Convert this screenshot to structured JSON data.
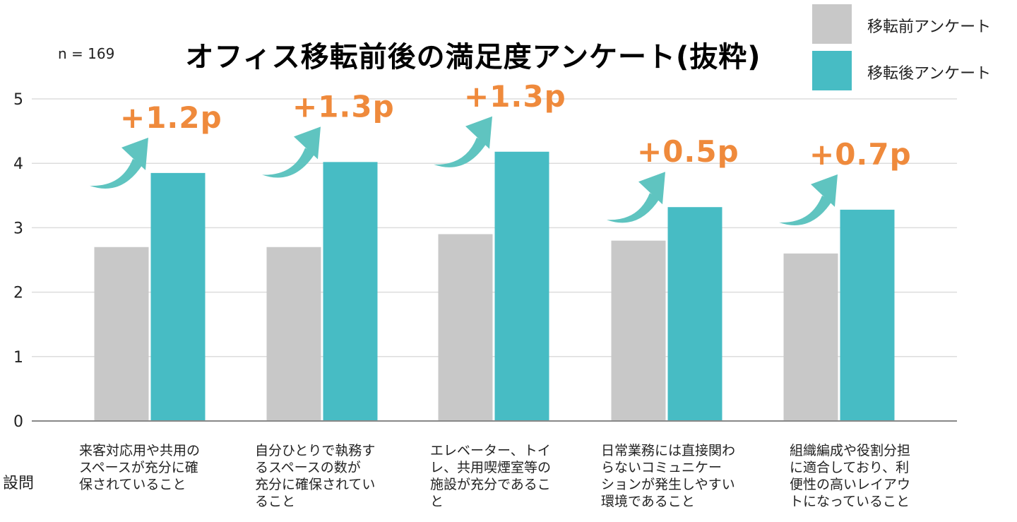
{
  "sample_size": "n = 169",
  "title": "オフィス移転前後の満足度アンケート(抜粋)",
  "xaxis_name": "設問",
  "colors": {
    "before": "#c8c8c8",
    "after": "#47bcc4",
    "arrow": "#5fc4c0",
    "delta": "#ef8a3c",
    "grid": "#dddddd",
    "axis": "#888888"
  },
  "chart_data": {
    "type": "bar",
    "title": "オフィス移転前後の満足度アンケート(抜粋)",
    "xlabel": "設問",
    "ylabel": "",
    "ylim": [
      0,
      5
    ],
    "yticks": [
      "0",
      "1",
      "2",
      "3",
      "4",
      "5"
    ],
    "grid": true,
    "legend_position": "top-right",
    "categories": [
      "来客対応用や共用のスペースが充分に確保されていること",
      "自分ひとりで執務するスペースの数が充分に確保されていること",
      "エレベーター、トイレ、共用喫煙室等の施設が充分であること",
      "日常業務には直接関わらないコミュニケーションが発生しやすい環境であること",
      "組織編成や役割分担に適合しており、利便性の高いレイアウトになっていること"
    ],
    "series": [
      {
        "name": "移転前アンケート",
        "values": [
          2.7,
          2.7,
          2.9,
          2.8,
          2.6
        ]
      },
      {
        "name": "移転後アンケート",
        "values": [
          3.85,
          4.02,
          4.18,
          3.32,
          3.28
        ]
      }
    ],
    "annotations": [
      "+1.2p",
      "+1.3p",
      "+1.3p",
      "+0.5p",
      "+0.7p"
    ]
  },
  "category_label_lines": [
    [
      "来客対応用や共用の",
      "スペースが充分に確",
      "保されていること"
    ],
    [
      "自分ひとりで執務す",
      "るスペースの数が",
      "充分に確保されてい",
      "ること"
    ],
    [
      "エレベーター、トイ",
      "レ、共用喫煙室等の",
      "施設が充分であるこ",
      "と"
    ],
    [
      "日常業務には直接関わ",
      "らないコミュニケー",
      "ションが発生しやすい",
      "環境であること"
    ],
    [
      "組織編成や役割分担",
      "に適合しており、利",
      "便性の高いレイアウ",
      "トになっていること"
    ]
  ]
}
